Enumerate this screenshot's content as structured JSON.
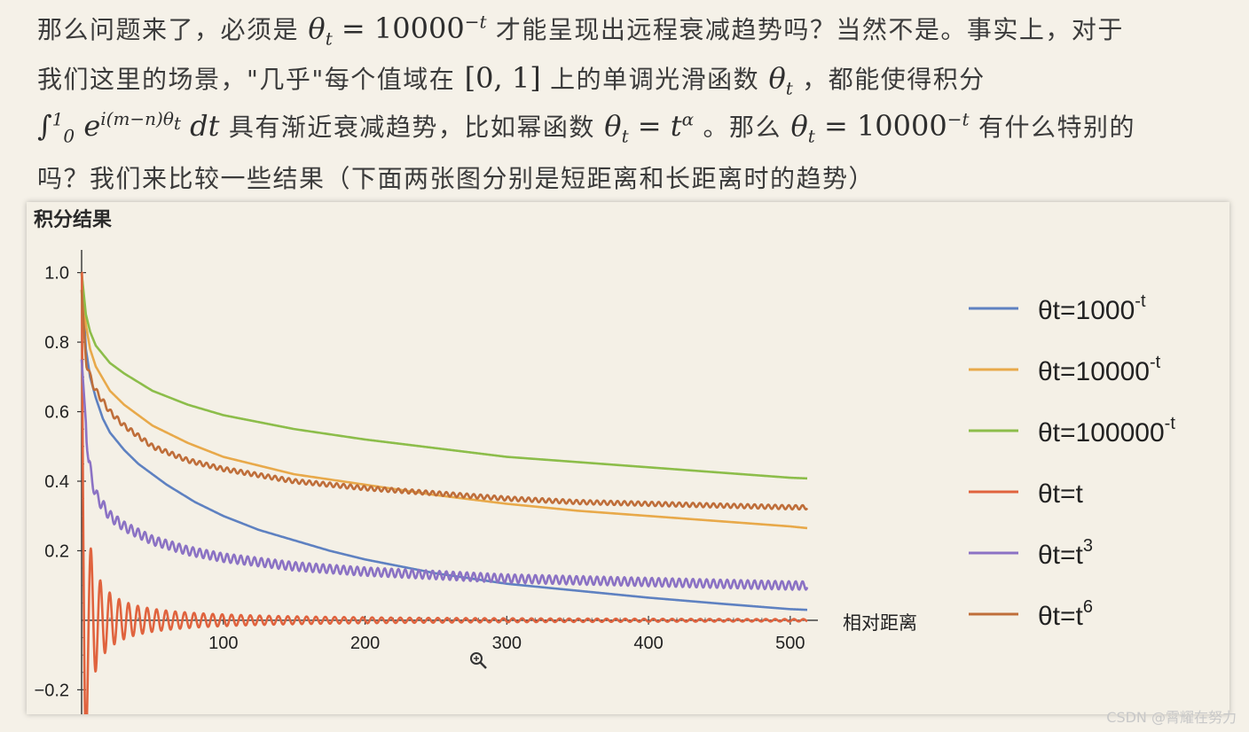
{
  "text": {
    "line1": {
      "a": "那么问题来了，必须是",
      "b": "才能呈现出远程衰减趋势吗？当然不是。事实上，对于"
    },
    "line2": {
      "a": "我们这里的场景，\"几乎\"每个值域在",
      "b": "上的单调光滑函数",
      "c": "，都能使得积分"
    },
    "line3": {
      "a": "具有渐近衰减趋势，比如幂函数",
      "b": "。那么",
      "c": "有什么特别的"
    },
    "line4": "吗？我们来比较一些结果（下面两张图分别是短距离和长距离时的趋势）"
  },
  "math": {
    "theta": "θ",
    "t": "t",
    "eq": "=",
    "base10000": "10000",
    "neg_t": "−t",
    "interval": "[0, 1]",
    "integral": "∫",
    "int_upper": "1",
    "int_lower": "0",
    "exp_base": "e",
    "exp_power": "i(m−n)θ",
    "exp_sub": "t",
    "dt": "dt",
    "alpha": "α"
  },
  "chart_data": {
    "type": "line",
    "title": "积分结果",
    "xlabel": "相对距离",
    "ylabel": "",
    "xlim": [
      0,
      512
    ],
    "ylim": [
      -0.25,
      1.05
    ],
    "xticks": [
      100,
      200,
      300,
      400,
      500
    ],
    "yticks": [
      -0.2,
      0.2,
      0.4,
      0.6,
      0.8,
      1.0
    ],
    "xtick_labels": [
      "100",
      "200",
      "300",
      "400",
      "500"
    ],
    "ytick_labels": [
      "−0.2",
      "0.2",
      "0.4",
      "0.6",
      "0.8",
      "1.0"
    ],
    "series": [
      {
        "name": "θt=1000^-t",
        "legend_main": "θt=1000",
        "legend_sup": "-t",
        "color": "#5e81c1",
        "x": [
          0,
          3,
          6,
          10,
          15,
          20,
          30,
          40,
          50,
          60,
          80,
          100,
          125,
          150,
          175,
          200,
          225,
          250,
          275,
          300,
          350,
          400,
          450,
          500,
          512
        ],
        "values": [
          1.0,
          0.78,
          0.7,
          0.64,
          0.58,
          0.54,
          0.49,
          0.45,
          0.42,
          0.39,
          0.34,
          0.3,
          0.26,
          0.23,
          0.2,
          0.175,
          0.155,
          0.135,
          0.12,
          0.105,
          0.085,
          0.065,
          0.048,
          0.032,
          0.03
        ]
      },
      {
        "name": "θt=10000^-t",
        "legend_main": "θt=10000",
        "legend_sup": "-t",
        "color": "#e8a94a",
        "x": [
          0,
          3,
          6,
          10,
          20,
          30,
          50,
          75,
          100,
          150,
          200,
          250,
          300,
          350,
          400,
          450,
          500,
          512
        ],
        "values": [
          1.0,
          0.85,
          0.78,
          0.73,
          0.66,
          0.62,
          0.56,
          0.51,
          0.47,
          0.42,
          0.39,
          0.36,
          0.335,
          0.315,
          0.3,
          0.285,
          0.27,
          0.265
        ]
      },
      {
        "name": "θt=100000^-t",
        "legend_main": "θt=100000",
        "legend_sup": "-t",
        "color": "#8cbd4a",
        "x": [
          0,
          3,
          6,
          10,
          20,
          30,
          50,
          75,
          100,
          150,
          200,
          250,
          300,
          350,
          400,
          450,
          500,
          512
        ],
        "values": [
          1.0,
          0.88,
          0.83,
          0.79,
          0.74,
          0.71,
          0.66,
          0.62,
          0.59,
          0.55,
          0.52,
          0.495,
          0.47,
          0.455,
          0.44,
          0.425,
          0.41,
          0.408
        ]
      },
      {
        "name": "θt=t",
        "legend_main": "θt=t",
        "legend_sup": "",
        "color": "#e0633e",
        "x": [
          0,
          512
        ],
        "values": [
          1.0,
          0.0
        ],
        "note": "damped oscillation around 0 (sinc-like), first trough ≈ -0.2 near x≈5"
      },
      {
        "name": "θt=t^3",
        "legend_main": "θt=t",
        "legend_sup": "3",
        "color": "#8b72c4",
        "x": [
          0,
          5,
          10,
          20,
          30,
          50,
          75,
          100,
          150,
          200,
          250,
          300,
          350,
          400,
          450,
          500,
          512
        ],
        "values": [
          0.75,
          0.45,
          0.36,
          0.3,
          0.27,
          0.23,
          0.2,
          0.18,
          0.155,
          0.14,
          0.13,
          0.12,
          0.115,
          0.11,
          0.105,
          0.1,
          0.1
        ]
      },
      {
        "name": "θt=t^6",
        "legend_main": "θt=t",
        "legend_sup": "6",
        "color": "#bf6e3a",
        "x": [
          0,
          3,
          6,
          10,
          20,
          30,
          50,
          75,
          100,
          150,
          200,
          250,
          300,
          350,
          400,
          450,
          500,
          512
        ],
        "values": [
          0.95,
          0.75,
          0.7,
          0.66,
          0.6,
          0.56,
          0.5,
          0.46,
          0.435,
          0.4,
          0.38,
          0.365,
          0.35,
          0.34,
          0.335,
          0.33,
          0.325,
          0.325
        ]
      }
    ]
  },
  "watermark": "CSDN @霄耀在努力"
}
